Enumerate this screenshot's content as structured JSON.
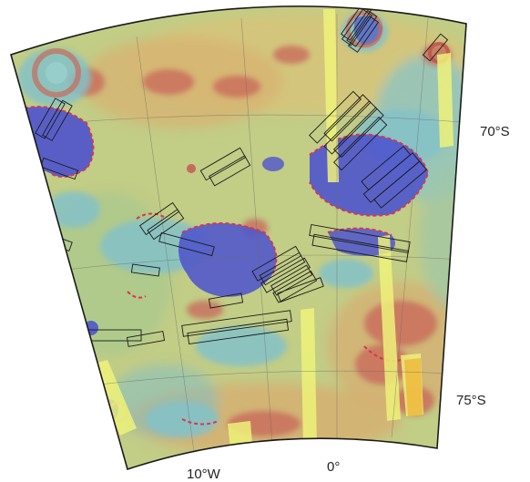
{
  "labels": {
    "lat_70": "70°S",
    "lat_75": "75°S",
    "lon_10w": "10°W",
    "lon_0": "0°"
  },
  "colors": {
    "background": "#ffffff",
    "terrain_green": "#b9cc7c",
    "terrain_yellow": "#d8c67a",
    "terrain_orange": "#d4a06a",
    "terrain_red": "#c65f56",
    "low_cyan": "#7fbfc5",
    "low_blue": "#5a5fd0",
    "deep_blue": "#3d3fc4",
    "contour_red": "#e0324a",
    "footprint_outline": "#1a1a1a",
    "strip_yellow": "#eef27a",
    "grid_line": "#6a6a6a"
  }
}
